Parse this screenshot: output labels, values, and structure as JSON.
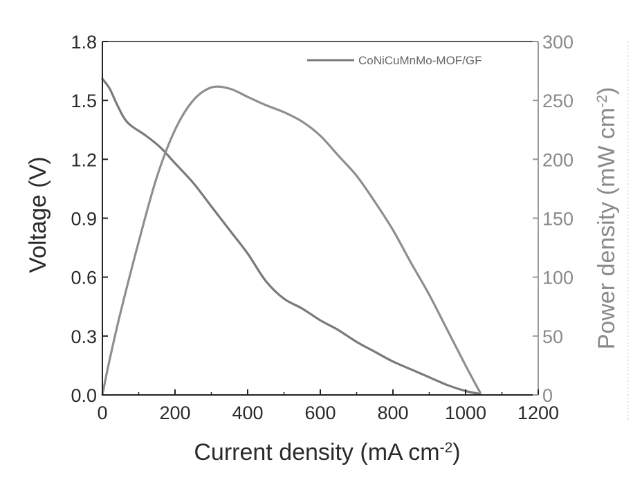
{
  "chart_data": {
    "type": "line",
    "xlabel": "Current density (mA cm",
    "xlabel_sup": "-2",
    "xlabel_end": ")",
    "ylabel_left": "Voltage (V)",
    "ylabel_right": "Power density (mW cm",
    "ylabel_right_sup": "-2",
    "ylabel_right_end": ")",
    "xlim": [
      0,
      1200
    ],
    "ylim_left": [
      0.0,
      1.8
    ],
    "ylim_right": [
      0,
      300
    ],
    "x_ticks": [
      "0",
      "200",
      "400",
      "600",
      "800",
      "1000",
      "1200"
    ],
    "y_left_ticks": [
      "0.0",
      "0.3",
      "0.6",
      "0.9",
      "1.2",
      "1.5",
      "1.8"
    ],
    "y_right_ticks": [
      "0",
      "50",
      "100",
      "150",
      "200",
      "250",
      "300"
    ],
    "legend": {
      "position": "top-right",
      "label": "CoNiCuMnMo-MOF/GF"
    },
    "colors": {
      "voltage": "#7a7a7a",
      "power": "#8e8e8e",
      "axis": "#222222",
      "right_axis": "#9a9a9a"
    },
    "series": [
      {
        "axis": "left",
        "unit": "V",
        "x": [
          0,
          20,
          40,
          60,
          80,
          120,
          160,
          200,
          250,
          300,
          350,
          400,
          450,
          500,
          550,
          600,
          650,
          700,
          750,
          800,
          850,
          900,
          950,
          1000,
          1040
        ],
        "y": [
          1.61,
          1.56,
          1.48,
          1.41,
          1.37,
          1.32,
          1.26,
          1.18,
          1.08,
          0.96,
          0.84,
          0.72,
          0.58,
          0.49,
          0.44,
          0.38,
          0.33,
          0.27,
          0.22,
          0.17,
          0.13,
          0.09,
          0.05,
          0.02,
          0.005
        ]
      },
      {
        "axis": "right",
        "unit": "mW cm-2",
        "x": [
          0,
          20,
          50,
          100,
          150,
          200,
          250,
          300,
          350,
          400,
          450,
          500,
          550,
          600,
          650,
          700,
          750,
          800,
          850,
          900,
          950,
          1000,
          1040
        ],
        "y": [
          0,
          30,
          70,
          130,
          185,
          225,
          250,
          261,
          260,
          253,
          246,
          240,
          232,
          220,
          203,
          186,
          164,
          140,
          112,
          85,
          55,
          25,
          2
        ]
      }
    ]
  }
}
